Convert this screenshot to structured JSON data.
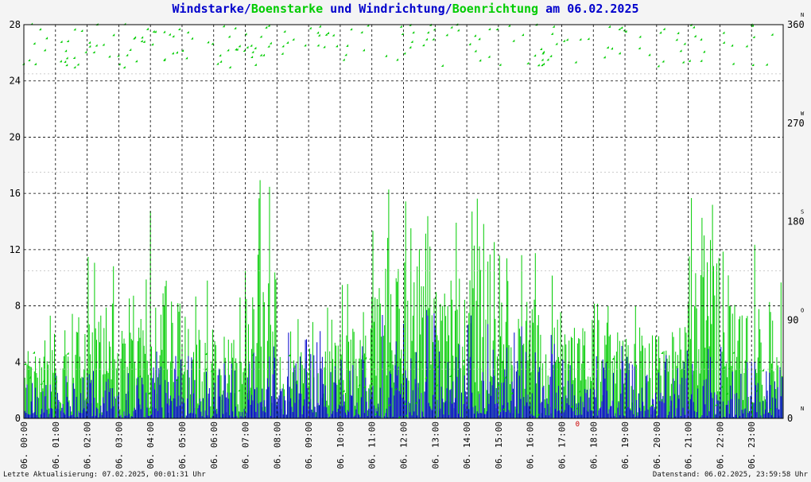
{
  "title": {
    "part1": "Windstarke/",
    "part2": "Boenstarke",
    "part3": " und Windrichtung/",
    "part4": "Boenrichtung",
    "part5": " am 06.02.2025"
  },
  "footer": {
    "left": "Letzte Aktualisierung: 07.02.2025, 00:01:31 Uhr",
    "right": "Datenstand: 06.02.2025, 23:59:58 Uhr"
  },
  "colors": {
    "primary": "#0000cc",
    "secondary": "#00cc00",
    "marker": "#cc0000",
    "grid": "#000000",
    "grid_minor": "#bbbbbb",
    "background": "#ffffff"
  },
  "chart_data": {
    "type": "line",
    "ylim": [
      0,
      28
    ],
    "y_ticks": [
      "0",
      "4",
      "8",
      "12",
      "16",
      "20",
      "24",
      "28"
    ],
    "y2lim": [
      0,
      360
    ],
    "y2_ticks": [
      "0",
      "90",
      "180",
      "270",
      "360"
    ],
    "y2_compass": [
      {
        "value": 0,
        "label": "N"
      },
      {
        "value": 90,
        "label": "O"
      },
      {
        "value": 180,
        "label": "S"
      },
      {
        "value": 270,
        "label": "W"
      },
      {
        "value": 360,
        "label": "N"
      }
    ],
    "x_tick_labels": [
      "06. 00:00",
      "06. 01:00",
      "06. 02:00",
      "06. 03:00",
      "06. 04:00",
      "06. 05:00",
      "06. 06:00",
      "06. 07:00",
      "06. 08:00",
      "06. 09:00",
      "06. 10:00",
      "06. 11:00",
      "06. 12:00",
      "06. 13:00",
      "06. 14:00",
      "06. 15:00",
      "06. 16:00",
      "06. 17:00",
      "06. 18:00",
      "06. 19:00",
      "06. 20:00",
      "06. 21:00",
      "06. 22:00",
      "06. 23:00"
    ],
    "hours": [
      0,
      24
    ],
    "marker_hour": 17.5,
    "marker_label": "0",
    "series": [
      {
        "name": "Windstarke",
        "color": "#0000cc",
        "hourly_max": [
          4.5,
          5.5,
          5.0,
          5.0,
          6.0,
          5.0,
          5.0,
          7.5,
          7.5,
          7.5,
          7.5,
          8.0,
          9.0,
          8.0,
          8.0,
          7.5,
          7.0,
          6.0,
          7.0,
          7.0,
          6.5,
          6.0,
          6.0,
          5.5
        ]
      },
      {
        "name": "Boenstarke",
        "color": "#00cc00",
        "hourly_max": [
          7.5,
          7.5,
          13.0,
          10.0,
          15.5,
          10.0,
          9.0,
          18.0,
          7.5,
          9.0,
          10.0,
          18.0,
          25.0,
          15.5,
          25.0,
          13.0,
          13.0,
          10.0,
          13.0,
          10.0,
          10.0,
          18.0,
          13.0,
          13.0
        ]
      },
      {
        "name": "Windrichtung",
        "color": "#0000cc",
        "axis": "y2",
        "type": "scatter",
        "dominant_range": [
          320,
          360
        ]
      },
      {
        "name": "Boenrichtung",
        "color": "#00cc00",
        "axis": "y2",
        "type": "scatter",
        "dominant_range": [
          320,
          360
        ]
      }
    ]
  }
}
